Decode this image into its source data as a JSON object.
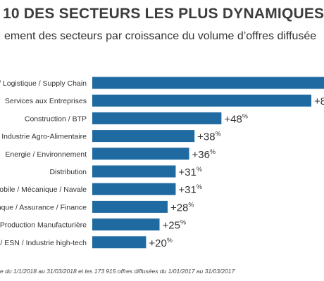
{
  "header": {
    "title": "10 DES SECTEURS LES PLUS DYNAMIQUES",
    "subtitle": "ement des secteurs par croissance du volume d’offres diffusée"
  },
  "footnote": "e du 1/1/2018 au 31/03/2018 et les 173 915 offres diffusées du 1/01/2017 au 31/03/2017",
  "colors": {
    "bar": "#1f6aa0",
    "bar_dark": "#175883",
    "text": "#333333"
  },
  "chart_data": {
    "type": "bar",
    "orientation": "horizontal",
    "categories": [
      "/ Logistique / Supply Chain",
      "Services aux Entreprises",
      "Construction / BTP",
      "Industrie Agro-Alimentaire",
      "Energie / Environnement",
      "Distribution",
      "mobile / Mécanique / Navale",
      "nque / Assurance / Finance",
      "Production Manufacturière",
      "e / ESN / Industrie high-tech"
    ],
    "values": [
      null,
      null,
      48,
      38,
      36,
      31,
      31,
      28,
      25,
      20
    ],
    "labels": [
      "",
      "+8",
      "+48",
      "+38",
      "+36",
      "+31",
      "+31",
      "+28",
      "+25",
      "+20"
    ],
    "label_suffix": "%",
    "xlim": [
      0,
      54
    ]
  }
}
